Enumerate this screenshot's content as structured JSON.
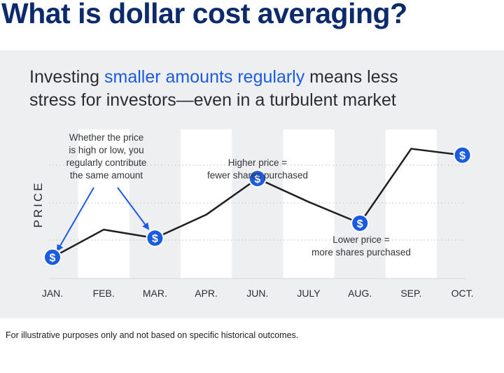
{
  "page_title": "What is dollar cost averaging?",
  "subtitle": {
    "line1_prefix": "Investing ",
    "line1_highlight": "smaller amounts regularly",
    "line1_suffix": " means less",
    "line2": "stress for investors—even in a turbulent market"
  },
  "footnote": "For illustrative purposes only and not based on specific historical outcomes.",
  "annotations": {
    "contribute": [
      "Whether the price",
      "is high or low, you",
      "regularly contribute",
      "the same amount"
    ],
    "higher": [
      "Higher price =",
      "fewer shares purchased"
    ],
    "lower": [
      "Lower price =",
      "more shares purchased"
    ]
  },
  "chart_data": {
    "type": "line",
    "categories": [
      "JAN.",
      "FEB.",
      "MAR.",
      "APR.",
      "JUN.",
      "JULY",
      "AUG.",
      "SEP.",
      "OCT."
    ],
    "ylabel": "PRICE",
    "xlabel": "",
    "series": [
      {
        "values": [
          1.0,
          2.3,
          1.9,
          3.0,
          4.7,
          3.6,
          2.6,
          6.1,
          5.8
        ]
      }
    ],
    "markers": [
      {
        "category": "JAN.",
        "symbol": "$"
      },
      {
        "category": "MAR.",
        "symbol": "$"
      },
      {
        "category": "JUN.",
        "symbol": "$"
      },
      {
        "category": "AUG.",
        "symbol": "$"
      },
      {
        "category": "OCT.",
        "symbol": "$"
      }
    ],
    "ylim": [
      0,
      7.5
    ],
    "grid": true,
    "colors": {
      "line": "#1e1f22",
      "marker": "#1a5be0",
      "band": "#ffffff",
      "grid": "#c9cbcf"
    }
  }
}
